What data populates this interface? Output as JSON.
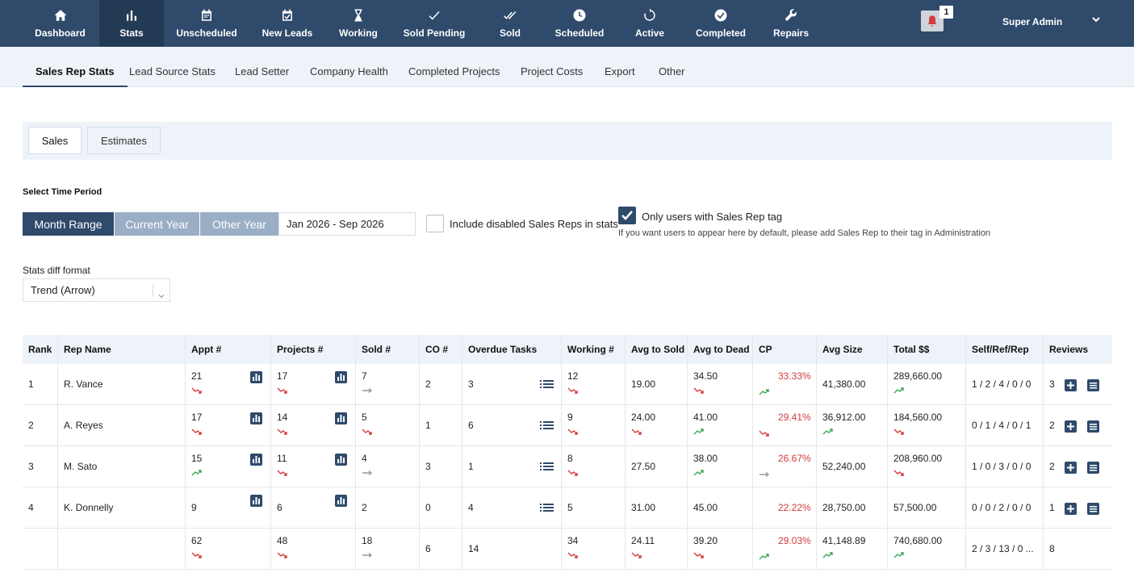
{
  "nav": {
    "items": [
      {
        "label": "Dashboard",
        "icon": "home-icon"
      },
      {
        "label": "Stats",
        "icon": "bar-chart-icon"
      },
      {
        "label": "Unscheduled",
        "icon": "calendar-icon"
      },
      {
        "label": "New Leads",
        "icon": "calendar-check-icon"
      },
      {
        "label": "Working",
        "icon": "hourglass-icon"
      },
      {
        "label": "Sold Pending",
        "icon": "check-icon"
      },
      {
        "label": "Sold",
        "icon": "double-check-icon"
      },
      {
        "label": "Scheduled",
        "icon": "clock-icon"
      },
      {
        "label": "Active",
        "icon": "refresh-icon"
      },
      {
        "label": "Completed",
        "icon": "check-circle-icon"
      },
      {
        "label": "Repairs",
        "icon": "wrench-icon"
      }
    ],
    "notification_count": "1",
    "user_name": "Super Admin"
  },
  "subtabs": [
    "Sales Rep Stats",
    "Lead Source Stats",
    "Lead Setter",
    "Company Health",
    "Completed Projects",
    "Project Costs",
    "Export",
    "Other"
  ],
  "panel_tabs": [
    "Sales",
    "Estimates"
  ],
  "time_period": {
    "label": "Select Time Period",
    "options": [
      "Month Range",
      "Current Year",
      "Other Year"
    ],
    "selected": "Month Range",
    "date_value": "Jan 2026 - Sep 2026"
  },
  "include_disabled": {
    "label": "Include disabled Sales Reps in stats",
    "checked": false
  },
  "only_sales_rep": {
    "label": "Only users with Sales Rep tag",
    "checked": true,
    "hint": "If you want users to appear here by default, please add Sales Rep to their tag in Administration"
  },
  "diff_format": {
    "label": "Stats diff format",
    "value": "Trend (Arrow)"
  },
  "table": {
    "headers": [
      "Rank",
      "Rep Name",
      "Appt #",
      "Projects #",
      "Sold #",
      "CO #",
      "Overdue Tasks",
      "Working #",
      "Avg to Sold",
      "Avg to Dead",
      "CP",
      "Avg Size",
      "Total $$",
      "Self/Ref/Rep",
      "Reviews"
    ],
    "rows": [
      {
        "rank": "1",
        "name": "R. Vance",
        "appt": "21",
        "appt_t": "down",
        "projects": "17",
        "projects_t": "down",
        "sold": "7",
        "sold_t": "flat",
        "co": "2",
        "overdue": "3",
        "working": "12",
        "working_t": "down",
        "avg_sold": "19.00",
        "avg_sold_t": "",
        "avg_dead": "34.50",
        "avg_dead_t": "down",
        "cp": "33.33%",
        "cp_t": "up",
        "avg_size": "41,380.00",
        "total": "289,660.00",
        "total_t": "up",
        "srr": "1 / 2 / 4 / 0 / 0",
        "reviews": "3"
      },
      {
        "rank": "2",
        "name": "A. Reyes",
        "appt": "17",
        "appt_t": "down",
        "projects": "14",
        "projects_t": "down",
        "sold": "5",
        "sold_t": "down",
        "co": "1",
        "overdue": "6",
        "working": "9",
        "working_t": "down",
        "avg_sold": "24.00",
        "avg_sold_t": "down",
        "avg_dead": "41.00",
        "avg_dead_t": "up",
        "cp": "29.41%",
        "cp_t": "down",
        "avg_size": "36,912.00",
        "avg_size_t": "up",
        "total": "184,560.00",
        "total_t": "down",
        "srr": "0 / 1 / 4 / 0 / 1",
        "reviews": "2"
      },
      {
        "rank": "3",
        "name": "M. Sato",
        "appt": "15",
        "appt_t": "up",
        "projects": "11",
        "projects_t": "down",
        "sold": "4",
        "sold_t": "flat",
        "co": "3",
        "overdue": "1",
        "working": "8",
        "working_t": "down",
        "avg_sold": "27.50",
        "avg_sold_t": "",
        "avg_dead": "38.00",
        "avg_dead_t": "up",
        "cp": "26.67%",
        "cp_t": "flat",
        "avg_size": "52,240.00",
        "total": "208,960.00",
        "total_t": "down",
        "srr": "1 / 0 / 3 / 0 / 0",
        "reviews": "2"
      },
      {
        "rank": "4",
        "name": "K. Donnelly",
        "appt": "9",
        "appt_t": "",
        "projects": "6",
        "projects_t": "",
        "sold": "2",
        "sold_t": "",
        "co": "0",
        "overdue": "4",
        "working": "5",
        "working_t": "",
        "avg_sold": "31.00",
        "avg_sold_t": "",
        "avg_dead": "45.00",
        "avg_dead_t": "",
        "cp": "22.22%",
        "cp_t": "",
        "avg_size": "28,750.00",
        "total": "57,500.00",
        "total_t": "",
        "srr": "0 / 0 / 2 / 0 / 0",
        "reviews": "1"
      }
    ],
    "totals": {
      "appt": "62",
      "appt_t": "down",
      "projects": "48",
      "projects_t": "down",
      "sold": "18",
      "sold_t": "flat",
      "co": "6",
      "overdue": "14",
      "working": "34",
      "working_t": "down",
      "avg_sold": "24.11",
      "avg_sold_t": "down",
      "avg_dead": "39.20",
      "avg_dead_t": "down",
      "cp": "29.03%",
      "cp_t": "up",
      "avg_size": "41,148.89",
      "avg_size_t": "up",
      "total": "740,680.00",
      "total_t": "up",
      "srr": "2 / 3 / 13 / 0 ...",
      "reviews": "8"
    }
  }
}
